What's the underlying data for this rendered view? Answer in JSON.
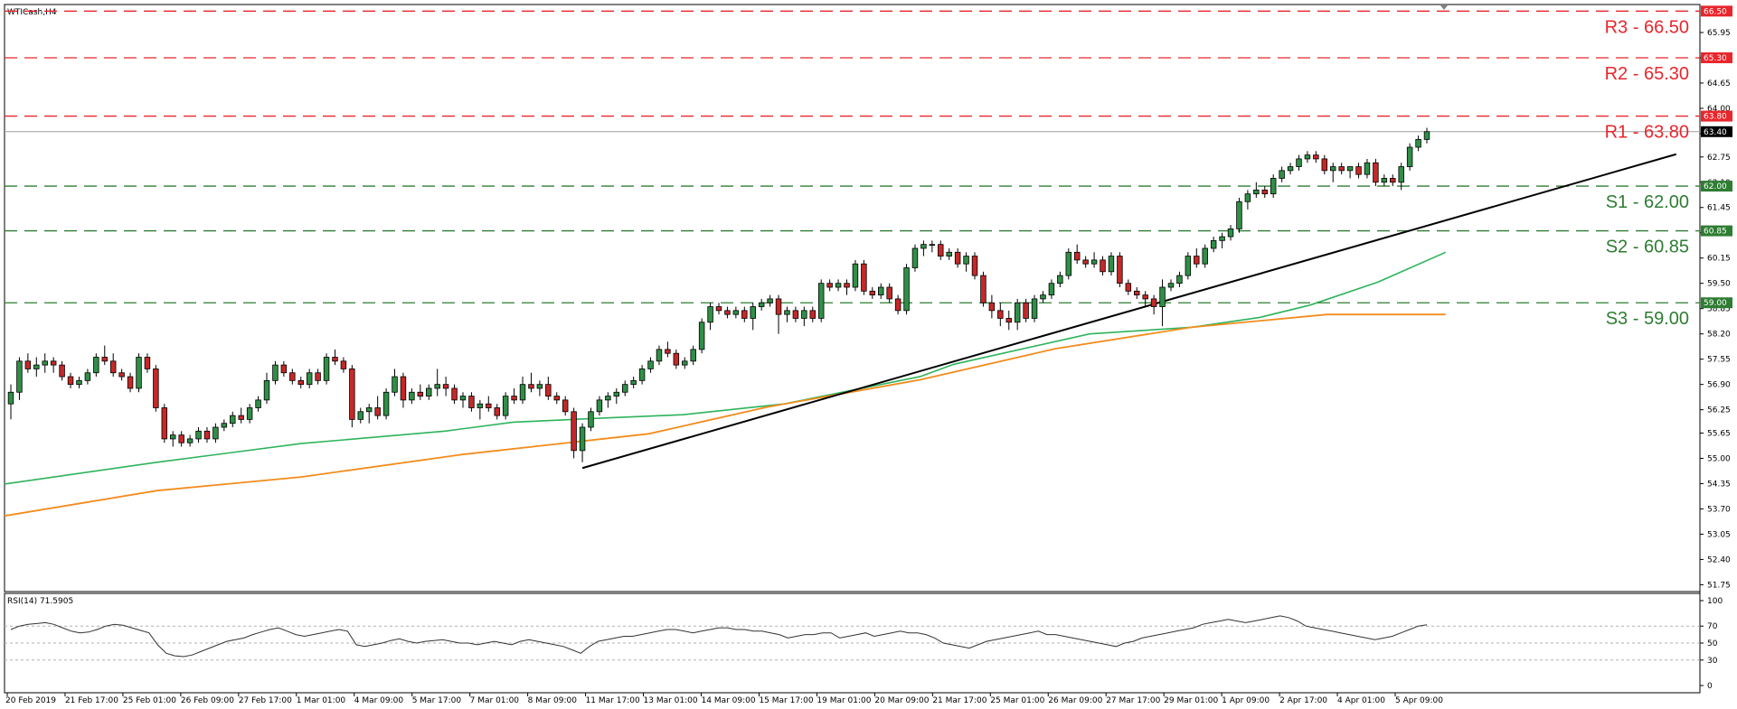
{
  "chart_data": [
    {
      "type": "candlestick",
      "title": "WTICash,H4",
      "y_ticks": [
        65.95,
        65.3,
        64.65,
        64.0,
        63.35,
        62.75,
        62.1,
        61.45,
        60.8,
        60.15,
        59.5,
        58.85,
        58.2,
        57.55,
        56.9,
        56.25,
        55.65,
        55.0,
        54.35,
        53.7,
        53.05,
        52.4,
        51.75
      ],
      "ylim": [
        51.62,
        66.6
      ],
      "x_labels": [
        "20 Feb 2019",
        "21 Feb 17:00",
        "25 Feb 01:00",
        "26 Feb 09:00",
        "27 Feb 17:00",
        "1 Mar 01:00",
        "4 Mar 09:00",
        "5 Mar 17:00",
        "7 Mar 01:00",
        "8 Mar 09:00",
        "11 Mar 17:00",
        "13 Mar 01:00",
        "14 Mar 09:00",
        "15 Mar 17:00",
        "19 Mar 01:00",
        "20 Mar 09:00",
        "21 Mar 17:00",
        "25 Mar 01:00",
        "26 Mar 09:00",
        "27 Mar 17:00",
        "29 Mar 01:00",
        "1 Apr 09:00",
        "2 Apr 17:00",
        "4 Apr 01:00",
        "5 Apr 09:00"
      ],
      "current_price": 63.4,
      "levels": [
        {
          "name": "R3",
          "value": 66.5,
          "tag": "66.50",
          "label": "R3 - 66.50",
          "color": "#e8262c"
        },
        {
          "name": "R2",
          "value": 65.3,
          "tag": "65.30",
          "label": "R2 - 65.30",
          "color": "#e8262c"
        },
        {
          "name": "R1",
          "value": 63.8,
          "tag": "63.80",
          "label": "R1  - 63.80",
          "color": "#e8262c"
        },
        {
          "name": "S1",
          "value": 62.0,
          "tag": "62.00",
          "label": "S1 - 62.00",
          "color": "#2e7d32"
        },
        {
          "name": "S2",
          "value": 60.85,
          "tag": "60.85",
          "label": "S2 - 60.85",
          "color": "#2e7d32"
        },
        {
          "name": "S3",
          "value": 59.0,
          "tag": "59.00",
          "label": "S3 - 59.00",
          "color": "#2e7d32"
        }
      ],
      "current_tag": "63.40",
      "candles": [
        [
          56.4,
          56.9,
          56.0,
          56.7
        ],
        [
          56.7,
          57.6,
          56.5,
          57.5
        ],
        [
          57.5,
          57.7,
          57.2,
          57.3
        ],
        [
          57.3,
          57.6,
          57.1,
          57.4
        ],
        [
          57.4,
          57.7,
          57.2,
          57.5
        ],
        [
          57.5,
          57.6,
          57.2,
          57.4
        ],
        [
          57.4,
          57.5,
          57.0,
          57.1
        ],
        [
          57.1,
          57.2,
          56.8,
          56.9
        ],
        [
          56.9,
          57.1,
          56.8,
          57.0
        ],
        [
          57.0,
          57.3,
          56.9,
          57.2
        ],
        [
          57.2,
          57.7,
          57.1,
          57.6
        ],
        [
          57.6,
          57.9,
          57.4,
          57.5
        ],
        [
          57.5,
          57.7,
          57.1,
          57.2
        ],
        [
          57.2,
          57.3,
          57.0,
          57.1
        ],
        [
          57.1,
          57.2,
          56.7,
          56.8
        ],
        [
          56.8,
          57.7,
          56.7,
          57.6
        ],
        [
          57.6,
          57.7,
          57.2,
          57.3
        ],
        [
          57.3,
          57.4,
          56.2,
          56.3
        ],
        [
          56.3,
          56.4,
          55.4,
          55.5
        ],
        [
          55.5,
          55.7,
          55.3,
          55.6
        ],
        [
          55.6,
          55.7,
          55.3,
          55.4
        ],
        [
          55.4,
          55.6,
          55.3,
          55.5
        ],
        [
          55.5,
          55.8,
          55.4,
          55.7
        ],
        [
          55.7,
          55.8,
          55.4,
          55.5
        ],
        [
          55.5,
          55.9,
          55.4,
          55.8
        ],
        [
          55.8,
          56.0,
          55.7,
          55.9
        ],
        [
          55.9,
          56.2,
          55.8,
          56.1
        ],
        [
          56.1,
          56.3,
          55.9,
          56.0
        ],
        [
          56.0,
          56.4,
          55.9,
          56.3
        ],
        [
          56.3,
          56.6,
          56.2,
          56.5
        ],
        [
          56.5,
          57.2,
          56.4,
          57.0
        ],
        [
          57.0,
          57.5,
          56.9,
          57.4
        ],
        [
          57.4,
          57.5,
          57.1,
          57.2
        ],
        [
          57.2,
          57.3,
          56.9,
          57.0
        ],
        [
          57.0,
          57.1,
          56.8,
          56.9
        ],
        [
          56.9,
          57.3,
          56.8,
          57.2
        ],
        [
          57.2,
          57.3,
          56.9,
          57.0
        ],
        [
          57.0,
          57.7,
          56.9,
          57.6
        ],
        [
          57.6,
          57.8,
          57.4,
          57.5
        ],
        [
          57.5,
          57.6,
          57.2,
          57.3
        ],
        [
          57.3,
          57.4,
          55.8,
          56.0
        ],
        [
          56.0,
          56.3,
          55.9,
          56.2
        ],
        [
          56.2,
          56.4,
          55.9,
          56.3
        ],
        [
          56.3,
          56.6,
          56.0,
          56.1
        ],
        [
          56.1,
          56.8,
          56.0,
          56.7
        ],
        [
          56.7,
          57.3,
          56.6,
          57.1
        ],
        [
          57.1,
          57.2,
          56.3,
          56.5
        ],
        [
          56.5,
          56.8,
          56.4,
          56.7
        ],
        [
          56.7,
          56.9,
          56.5,
          56.6
        ],
        [
          56.6,
          56.9,
          56.5,
          56.8
        ],
        [
          56.8,
          57.3,
          56.6,
          56.9
        ],
        [
          56.9,
          57.1,
          56.6,
          56.8
        ],
        [
          56.8,
          56.9,
          56.4,
          56.5
        ],
        [
          56.5,
          56.7,
          56.3,
          56.6
        ],
        [
          56.6,
          56.7,
          56.2,
          56.3
        ],
        [
          56.3,
          56.5,
          56.0,
          56.4
        ],
        [
          56.4,
          56.6,
          56.2,
          56.3
        ],
        [
          56.3,
          56.4,
          56.0,
          56.1
        ],
        [
          56.1,
          56.7,
          56.0,
          56.6
        ],
        [
          56.6,
          56.8,
          56.4,
          56.5
        ],
        [
          56.5,
          57.1,
          56.4,
          56.9
        ],
        [
          56.9,
          57.2,
          56.7,
          56.8
        ],
        [
          56.8,
          57.0,
          56.6,
          56.9
        ],
        [
          56.9,
          57.1,
          56.5,
          56.6
        ],
        [
          56.6,
          56.7,
          56.4,
          56.5
        ],
        [
          56.5,
          56.6,
          56.1,
          56.2
        ],
        [
          56.2,
          56.3,
          55.0,
          55.2
        ],
        [
          55.2,
          55.9,
          54.9,
          55.8
        ],
        [
          55.8,
          56.3,
          55.7,
          56.2
        ],
        [
          56.2,
          56.6,
          56.1,
          56.5
        ],
        [
          56.5,
          56.7,
          56.3,
          56.6
        ],
        [
          56.6,
          56.8,
          56.4,
          56.7
        ],
        [
          56.7,
          57.0,
          56.6,
          56.9
        ],
        [
          56.9,
          57.1,
          56.8,
          57.0
        ],
        [
          57.0,
          57.4,
          56.9,
          57.3
        ],
        [
          57.3,
          57.6,
          57.2,
          57.5
        ],
        [
          57.5,
          57.9,
          57.4,
          57.8
        ],
        [
          57.8,
          58.0,
          57.6,
          57.7
        ],
        [
          57.7,
          57.8,
          57.3,
          57.4
        ],
        [
          57.4,
          57.6,
          57.3,
          57.5
        ],
        [
          57.5,
          57.9,
          57.4,
          57.8
        ],
        [
          57.8,
          58.6,
          57.7,
          58.5
        ],
        [
          58.5,
          59.0,
          58.3,
          58.9
        ],
        [
          58.9,
          59.0,
          58.7,
          58.8
        ],
        [
          58.8,
          58.9,
          58.6,
          58.7
        ],
        [
          58.7,
          58.9,
          58.6,
          58.8
        ],
        [
          58.8,
          58.9,
          58.5,
          58.6
        ],
        [
          58.6,
          59.0,
          58.3,
          58.9
        ],
        [
          58.9,
          59.1,
          58.8,
          59.0
        ],
        [
          59.0,
          59.2,
          58.9,
          59.1
        ],
        [
          59.1,
          59.2,
          58.2,
          58.7
        ],
        [
          58.7,
          58.9,
          58.5,
          58.8
        ],
        [
          58.8,
          58.9,
          58.5,
          58.6
        ],
        [
          58.6,
          58.9,
          58.4,
          58.8
        ],
        [
          58.8,
          58.9,
          58.5,
          58.6
        ],
        [
          58.6,
          59.6,
          58.5,
          59.5
        ],
        [
          59.5,
          59.6,
          59.3,
          59.4
        ],
        [
          59.4,
          59.6,
          59.3,
          59.5
        ],
        [
          59.5,
          59.6,
          59.2,
          59.4
        ],
        [
          59.4,
          60.1,
          59.3,
          60.0
        ],
        [
          60.0,
          60.1,
          59.2,
          59.3
        ],
        [
          59.3,
          59.4,
          59.1,
          59.2
        ],
        [
          59.2,
          59.5,
          59.1,
          59.4
        ],
        [
          59.4,
          59.5,
          59.0,
          59.1
        ],
        [
          59.1,
          59.2,
          58.7,
          58.8
        ],
        [
          58.8,
          60.0,
          58.7,
          59.9
        ],
        [
          59.9,
          60.5,
          59.8,
          60.4
        ],
        [
          60.4,
          60.6,
          60.2,
          60.5
        ],
        [
          60.5,
          60.6,
          60.3,
          60.5
        ],
        [
          60.5,
          60.6,
          60.1,
          60.2
        ],
        [
          60.2,
          60.4,
          60.1,
          60.3
        ],
        [
          60.3,
          60.4,
          59.9,
          60.0
        ],
        [
          60.0,
          60.3,
          59.8,
          60.2
        ],
        [
          60.2,
          60.3,
          59.6,
          59.7
        ],
        [
          59.7,
          59.8,
          58.9,
          59.0
        ],
        [
          59.0,
          59.2,
          58.6,
          58.8
        ],
        [
          58.8,
          59.0,
          58.4,
          58.6
        ],
        [
          58.6,
          58.8,
          58.3,
          58.5
        ],
        [
          58.5,
          59.1,
          58.3,
          59.0
        ],
        [
          59.0,
          59.1,
          58.5,
          58.6
        ],
        [
          58.6,
          59.2,
          58.5,
          59.1
        ],
        [
          59.1,
          59.3,
          59.0,
          59.2
        ],
        [
          59.2,
          59.6,
          59.1,
          59.5
        ],
        [
          59.5,
          59.8,
          59.4,
          59.7
        ],
        [
          59.7,
          60.4,
          59.6,
          60.3
        ],
        [
          60.3,
          60.5,
          60.0,
          60.1
        ],
        [
          60.1,
          60.2,
          59.9,
          60.0
        ],
        [
          60.0,
          60.3,
          59.9,
          60.1
        ],
        [
          60.1,
          60.2,
          59.7,
          59.8
        ],
        [
          59.8,
          60.3,
          59.7,
          60.2
        ],
        [
          60.2,
          60.3,
          59.4,
          59.5
        ],
        [
          59.5,
          59.6,
          59.2,
          59.3
        ],
        [
          59.3,
          59.4,
          59.1,
          59.2
        ],
        [
          59.2,
          59.3,
          58.9,
          59.1
        ],
        [
          59.1,
          59.2,
          58.7,
          58.9
        ],
        [
          58.9,
          59.6,
          58.4,
          59.4
        ],
        [
          59.4,
          59.6,
          59.3,
          59.5
        ],
        [
          59.5,
          59.8,
          59.4,
          59.7
        ],
        [
          59.7,
          60.3,
          59.6,
          60.2
        ],
        [
          60.2,
          60.4,
          59.9,
          60.0
        ],
        [
          60.0,
          60.5,
          59.9,
          60.4
        ],
        [
          60.4,
          60.7,
          60.3,
          60.6
        ],
        [
          60.6,
          60.8,
          60.4,
          60.7
        ],
        [
          60.7,
          61.0,
          60.6,
          60.9
        ],
        [
          60.9,
          61.7,
          60.8,
          61.6
        ],
        [
          61.6,
          61.9,
          61.4,
          61.8
        ],
        [
          61.8,
          62.1,
          61.7,
          61.9
        ],
        [
          61.9,
          62.0,
          61.7,
          61.8
        ],
        [
          61.8,
          62.3,
          61.7,
          62.2
        ],
        [
          62.2,
          62.5,
          62.1,
          62.4
        ],
        [
          62.4,
          62.6,
          62.3,
          62.5
        ],
        [
          62.5,
          62.8,
          62.4,
          62.7
        ],
        [
          62.7,
          62.9,
          62.6,
          62.8
        ],
        [
          62.8,
          62.9,
          62.6,
          62.7
        ],
        [
          62.7,
          62.8,
          62.3,
          62.4
        ],
        [
          62.4,
          62.6,
          62.1,
          62.5
        ],
        [
          62.5,
          62.6,
          62.3,
          62.4
        ],
        [
          62.4,
          62.5,
          62.2,
          62.5
        ],
        [
          62.5,
          62.6,
          62.2,
          62.3
        ],
        [
          62.3,
          62.7,
          62.2,
          62.6
        ],
        [
          62.6,
          62.7,
          62.0,
          62.1
        ],
        [
          62.1,
          62.3,
          62.0,
          62.2
        ],
        [
          62.2,
          62.3,
          62.0,
          62.1
        ],
        [
          62.1,
          62.6,
          61.9,
          62.5
        ],
        [
          62.5,
          63.1,
          62.4,
          63.0
        ],
        [
          63.0,
          63.3,
          62.9,
          63.2
        ],
        [
          63.2,
          63.5,
          63.1,
          63.4
        ]
      ],
      "ma_green": [
        [
          0,
          54.34
        ],
        [
          0.09,
          54.9
        ],
        [
          0.175,
          55.38
        ],
        [
          0.26,
          55.7
        ],
        [
          0.3,
          55.93
        ],
        [
          0.36,
          56.05
        ],
        [
          0.4,
          56.12
        ],
        [
          0.46,
          56.4
        ],
        [
          0.54,
          57.1
        ],
        [
          0.56,
          57.42
        ],
        [
          0.64,
          58.2
        ],
        [
          0.7,
          58.37
        ],
        [
          0.74,
          58.62
        ],
        [
          0.77,
          58.94
        ],
        [
          0.81,
          59.53
        ],
        [
          0.85,
          60.3
        ]
      ],
      "ma_orange": [
        [
          0,
          53.52
        ],
        [
          0.09,
          54.17
        ],
        [
          0.175,
          54.52
        ],
        [
          0.27,
          55.1
        ],
        [
          0.38,
          55.63
        ],
        [
          0.45,
          56.32
        ],
        [
          0.54,
          57.02
        ],
        [
          0.62,
          57.82
        ],
        [
          0.7,
          58.37
        ],
        [
          0.78,
          58.7
        ],
        [
          0.85,
          58.7
        ]
      ]
    },
    {
      "type": "line",
      "title": "RSI(14) 71.5905",
      "y_ticks": [
        100,
        70,
        50,
        30,
        0
      ],
      "ylim": [
        0,
        100
      ],
      "values": [
        66,
        70,
        72,
        73,
        74,
        72,
        68,
        64,
        62,
        63,
        66,
        70,
        72,
        71,
        68,
        65,
        62,
        48,
        38,
        35,
        34,
        36,
        40,
        44,
        48,
        52,
        54,
        56,
        60,
        63,
        66,
        68,
        64,
        60,
        58,
        60,
        62,
        64,
        66,
        64,
        48,
        46,
        48,
        50,
        53,
        55,
        52,
        50,
        52,
        53,
        54,
        52,
        50,
        50,
        48,
        50,
        52,
        50,
        48,
        52,
        54,
        52,
        50,
        48,
        46,
        42,
        38,
        46,
        52,
        54,
        56,
        58,
        58,
        60,
        62,
        64,
        66,
        66,
        64,
        62,
        64,
        66,
        68,
        68,
        66,
        66,
        64,
        64,
        62,
        60,
        56,
        58,
        60,
        60,
        62,
        62,
        56,
        58,
        60,
        62,
        58,
        60,
        62,
        64,
        62,
        62,
        60,
        56,
        50,
        48,
        46,
        44,
        48,
        52,
        54,
        56,
        58,
        60,
        62,
        64,
        60,
        60,
        58,
        56,
        54,
        52,
        50,
        48,
        46,
        50,
        52,
        56,
        58,
        60,
        62,
        64,
        66,
        68,
        72,
        74,
        76,
        78,
        76,
        74,
        76,
        78,
        80,
        82,
        80,
        76,
        70,
        68,
        66,
        64,
        62,
        60,
        58,
        56,
        54,
        56,
        58,
        62,
        66,
        70,
        71.59
      ]
    }
  ]
}
